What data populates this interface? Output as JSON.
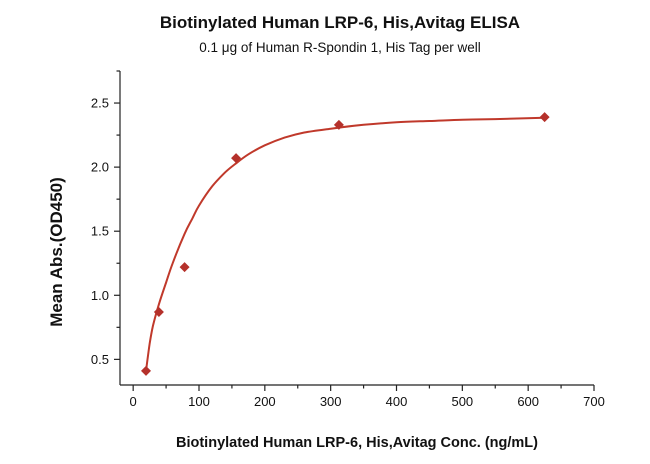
{
  "chart_data": {
    "type": "scatter",
    "title": "Biotinylated Human LRP-6, His,Avitag ELISA",
    "subtitle": "0.1 μg of Human R-Spondin 1, His Tag per well",
    "xlabel": "Biotinylated Human LRP-6, His,Avitag Conc. (ng/mL)",
    "ylabel": "Mean Abs.(OD450)",
    "xlim": [
      -20,
      700
    ],
    "ylim": [
      0.3,
      2.75
    ],
    "x_ticks": [
      0,
      100,
      200,
      300,
      400,
      500,
      600,
      700
    ],
    "y_ticks": [
      0.5,
      1.0,
      1.5,
      2.0,
      2.5
    ],
    "x_tick_labels": [
      "0",
      "100",
      "200",
      "300",
      "400",
      "500",
      "600",
      "700"
    ],
    "y_tick_labels": [
      "0.5",
      "1.0",
      "1.5",
      "2.0",
      "2.5"
    ],
    "grid": false,
    "series": [
      {
        "marker": "diamond",
        "color": "#b5312b",
        "x": [
          19.5,
          39.1,
          78.1,
          156.3,
          312.5,
          625
        ],
        "y": [
          0.41,
          0.87,
          1.22,
          2.07,
          2.33,
          2.39
        ]
      }
    ],
    "fit_curve": {
      "color": "#c0392b",
      "x": [
        19.5,
        25,
        30,
        39.1,
        50,
        60,
        78.1,
        90,
        100,
        120,
        140,
        156.3,
        175,
        200,
        230,
        260,
        300,
        350,
        400,
        450,
        500,
        550,
        625
      ],
      "y": [
        0.41,
        0.62,
        0.76,
        0.93,
        1.1,
        1.25,
        1.48,
        1.6,
        1.7,
        1.85,
        1.96,
        2.03,
        2.1,
        2.17,
        2.23,
        2.27,
        2.3,
        2.33,
        2.35,
        2.36,
        2.37,
        2.375,
        2.385
      ]
    }
  }
}
